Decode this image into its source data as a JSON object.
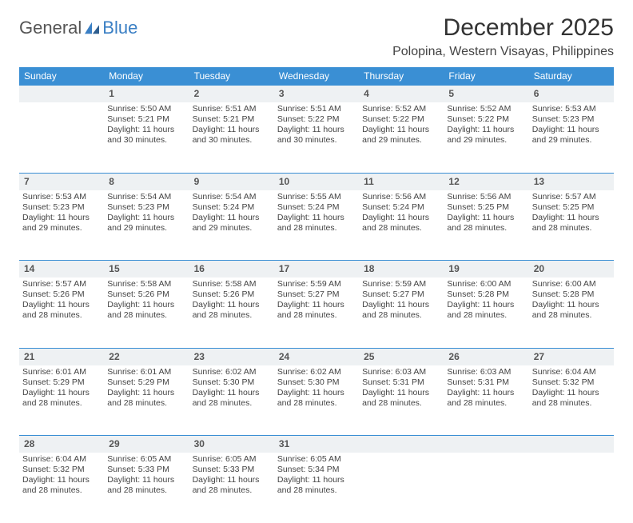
{
  "brand": {
    "part1": "General",
    "part2": "Blue"
  },
  "title": "December 2025",
  "location": "Polopina, Western Visayas, Philippines",
  "weekdays": [
    "Sunday",
    "Monday",
    "Tuesday",
    "Wednesday",
    "Thursday",
    "Friday",
    "Saturday"
  ],
  "colors": {
    "header_bg": "#3a8fd4",
    "header_text": "#ffffff",
    "daynum_bg": "#eef1f3",
    "row_border": "#3a8fd4",
    "brand_blue": "#3a7fc4",
    "text": "#444444"
  },
  "weeks": [
    [
      {
        "n": "",
        "sr": "",
        "ss": "",
        "d1": "",
        "d2": ""
      },
      {
        "n": "1",
        "sr": "Sunrise: 5:50 AM",
        "ss": "Sunset: 5:21 PM",
        "d1": "Daylight: 11 hours",
        "d2": "and 30 minutes."
      },
      {
        "n": "2",
        "sr": "Sunrise: 5:51 AM",
        "ss": "Sunset: 5:21 PM",
        "d1": "Daylight: 11 hours",
        "d2": "and 30 minutes."
      },
      {
        "n": "3",
        "sr": "Sunrise: 5:51 AM",
        "ss": "Sunset: 5:22 PM",
        "d1": "Daylight: 11 hours",
        "d2": "and 30 minutes."
      },
      {
        "n": "4",
        "sr": "Sunrise: 5:52 AM",
        "ss": "Sunset: 5:22 PM",
        "d1": "Daylight: 11 hours",
        "d2": "and 29 minutes."
      },
      {
        "n": "5",
        "sr": "Sunrise: 5:52 AM",
        "ss": "Sunset: 5:22 PM",
        "d1": "Daylight: 11 hours",
        "d2": "and 29 minutes."
      },
      {
        "n": "6",
        "sr": "Sunrise: 5:53 AM",
        "ss": "Sunset: 5:23 PM",
        "d1": "Daylight: 11 hours",
        "d2": "and 29 minutes."
      }
    ],
    [
      {
        "n": "7",
        "sr": "Sunrise: 5:53 AM",
        "ss": "Sunset: 5:23 PM",
        "d1": "Daylight: 11 hours",
        "d2": "and 29 minutes."
      },
      {
        "n": "8",
        "sr": "Sunrise: 5:54 AM",
        "ss": "Sunset: 5:23 PM",
        "d1": "Daylight: 11 hours",
        "d2": "and 29 minutes."
      },
      {
        "n": "9",
        "sr": "Sunrise: 5:54 AM",
        "ss": "Sunset: 5:24 PM",
        "d1": "Daylight: 11 hours",
        "d2": "and 29 minutes."
      },
      {
        "n": "10",
        "sr": "Sunrise: 5:55 AM",
        "ss": "Sunset: 5:24 PM",
        "d1": "Daylight: 11 hours",
        "d2": "and 28 minutes."
      },
      {
        "n": "11",
        "sr": "Sunrise: 5:56 AM",
        "ss": "Sunset: 5:24 PM",
        "d1": "Daylight: 11 hours",
        "d2": "and 28 minutes."
      },
      {
        "n": "12",
        "sr": "Sunrise: 5:56 AM",
        "ss": "Sunset: 5:25 PM",
        "d1": "Daylight: 11 hours",
        "d2": "and 28 minutes."
      },
      {
        "n": "13",
        "sr": "Sunrise: 5:57 AM",
        "ss": "Sunset: 5:25 PM",
        "d1": "Daylight: 11 hours",
        "d2": "and 28 minutes."
      }
    ],
    [
      {
        "n": "14",
        "sr": "Sunrise: 5:57 AM",
        "ss": "Sunset: 5:26 PM",
        "d1": "Daylight: 11 hours",
        "d2": "and 28 minutes."
      },
      {
        "n": "15",
        "sr": "Sunrise: 5:58 AM",
        "ss": "Sunset: 5:26 PM",
        "d1": "Daylight: 11 hours",
        "d2": "and 28 minutes."
      },
      {
        "n": "16",
        "sr": "Sunrise: 5:58 AM",
        "ss": "Sunset: 5:26 PM",
        "d1": "Daylight: 11 hours",
        "d2": "and 28 minutes."
      },
      {
        "n": "17",
        "sr": "Sunrise: 5:59 AM",
        "ss": "Sunset: 5:27 PM",
        "d1": "Daylight: 11 hours",
        "d2": "and 28 minutes."
      },
      {
        "n": "18",
        "sr": "Sunrise: 5:59 AM",
        "ss": "Sunset: 5:27 PM",
        "d1": "Daylight: 11 hours",
        "d2": "and 28 minutes."
      },
      {
        "n": "19",
        "sr": "Sunrise: 6:00 AM",
        "ss": "Sunset: 5:28 PM",
        "d1": "Daylight: 11 hours",
        "d2": "and 28 minutes."
      },
      {
        "n": "20",
        "sr": "Sunrise: 6:00 AM",
        "ss": "Sunset: 5:28 PM",
        "d1": "Daylight: 11 hours",
        "d2": "and 28 minutes."
      }
    ],
    [
      {
        "n": "21",
        "sr": "Sunrise: 6:01 AM",
        "ss": "Sunset: 5:29 PM",
        "d1": "Daylight: 11 hours",
        "d2": "and 28 minutes."
      },
      {
        "n": "22",
        "sr": "Sunrise: 6:01 AM",
        "ss": "Sunset: 5:29 PM",
        "d1": "Daylight: 11 hours",
        "d2": "and 28 minutes."
      },
      {
        "n": "23",
        "sr": "Sunrise: 6:02 AM",
        "ss": "Sunset: 5:30 PM",
        "d1": "Daylight: 11 hours",
        "d2": "and 28 minutes."
      },
      {
        "n": "24",
        "sr": "Sunrise: 6:02 AM",
        "ss": "Sunset: 5:30 PM",
        "d1": "Daylight: 11 hours",
        "d2": "and 28 minutes."
      },
      {
        "n": "25",
        "sr": "Sunrise: 6:03 AM",
        "ss": "Sunset: 5:31 PM",
        "d1": "Daylight: 11 hours",
        "d2": "and 28 minutes."
      },
      {
        "n": "26",
        "sr": "Sunrise: 6:03 AM",
        "ss": "Sunset: 5:31 PM",
        "d1": "Daylight: 11 hours",
        "d2": "and 28 minutes."
      },
      {
        "n": "27",
        "sr": "Sunrise: 6:04 AM",
        "ss": "Sunset: 5:32 PM",
        "d1": "Daylight: 11 hours",
        "d2": "and 28 minutes."
      }
    ],
    [
      {
        "n": "28",
        "sr": "Sunrise: 6:04 AM",
        "ss": "Sunset: 5:32 PM",
        "d1": "Daylight: 11 hours",
        "d2": "and 28 minutes."
      },
      {
        "n": "29",
        "sr": "Sunrise: 6:05 AM",
        "ss": "Sunset: 5:33 PM",
        "d1": "Daylight: 11 hours",
        "d2": "and 28 minutes."
      },
      {
        "n": "30",
        "sr": "Sunrise: 6:05 AM",
        "ss": "Sunset: 5:33 PM",
        "d1": "Daylight: 11 hours",
        "d2": "and 28 minutes."
      },
      {
        "n": "31",
        "sr": "Sunrise: 6:05 AM",
        "ss": "Sunset: 5:34 PM",
        "d1": "Daylight: 11 hours",
        "d2": "and 28 minutes."
      },
      {
        "n": "",
        "sr": "",
        "ss": "",
        "d1": "",
        "d2": ""
      },
      {
        "n": "",
        "sr": "",
        "ss": "",
        "d1": "",
        "d2": ""
      },
      {
        "n": "",
        "sr": "",
        "ss": "",
        "d1": "",
        "d2": ""
      }
    ]
  ]
}
